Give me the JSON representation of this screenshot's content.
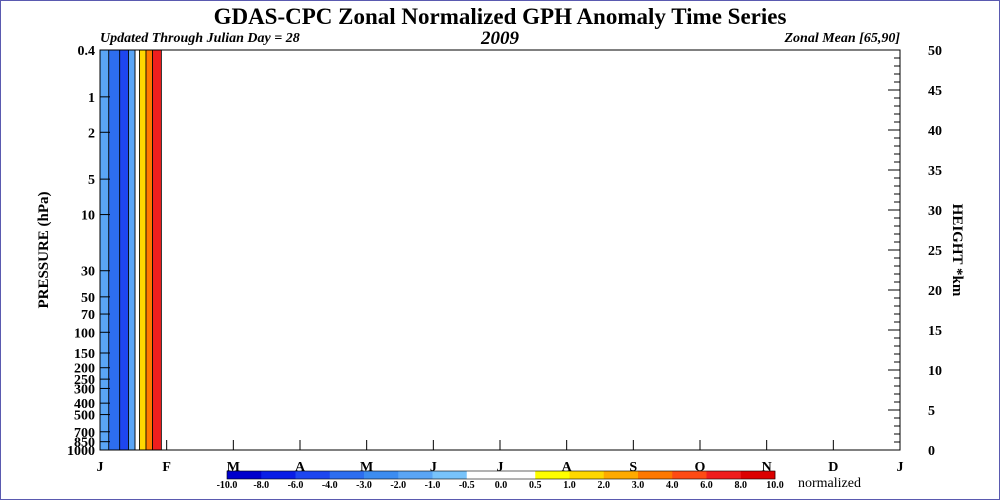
{
  "title": "GDAS-CPC Zonal Normalized GPH Anomaly Time Series",
  "subtitle_left": "Updated Through Julian Day =  28",
  "year": "2009",
  "subtitle_right": "Zonal Mean [65,90]",
  "chart_data": {
    "type": "heatmap",
    "ylabel_left": "PRESSURE (hPa)",
    "ylabel_right": "HEIGHT *km",
    "colorbar_label": "normalized",
    "x_tick_labels": [
      "J",
      "F",
      "M",
      "A",
      "M",
      "J",
      "J",
      "A",
      "S",
      "O",
      "N",
      "D",
      "J"
    ],
    "pressure_ticks": [
      {
        "p": 0.4,
        "label": "0.4"
      },
      {
        "p": 1,
        "label": "1"
      },
      {
        "p": 2,
        "label": "2"
      },
      {
        "p": 5,
        "label": "5"
      },
      {
        "p": 10,
        "label": "10"
      },
      {
        "p": 30,
        "label": "30"
      },
      {
        "p": 50,
        "label": "50"
      },
      {
        "p": 70,
        "label": "70"
      },
      {
        "p": 100,
        "label": "100"
      },
      {
        "p": 150,
        "label": "150"
      },
      {
        "p": 200,
        "label": "200"
      },
      {
        "p": 250,
        "label": "250"
      },
      {
        "p": 300,
        "label": "300"
      },
      {
        "p": 400,
        "label": "400"
      },
      {
        "p": 500,
        "label": "500"
      },
      {
        "p": 700,
        "label": "700"
      },
      {
        "p": 850,
        "label": "850"
      },
      {
        "p": 1000,
        "label": "1000"
      }
    ],
    "pressure_range": [
      1000,
      0.4
    ],
    "height_ticks": [
      0,
      5,
      10,
      15,
      20,
      25,
      30,
      35,
      40,
      45,
      50
    ],
    "height_range_km": [
      0,
      50
    ],
    "colorbar_levels": [
      "-10.0",
      "-8.0",
      "-6.0",
      "-4.0",
      "-3.0",
      "-2.0",
      "-1.0",
      "-0.5",
      "0.0",
      "0.5",
      "1.0",
      "2.0",
      "3.0",
      "4.0",
      "6.0",
      "8.0",
      "10.0"
    ],
    "colorbar_colors": [
      "#0000cc",
      "#0a1ee6",
      "#1e46f0",
      "#2d6ef0",
      "#3c8cf0",
      "#5aa5f5",
      "#78c3fa",
      "#ffffff",
      "#ffffff",
      "#ffff00",
      "#ffd700",
      "#ffaa00",
      "#ff7800",
      "#ff4b14",
      "#f01e1e",
      "#dc0000"
    ],
    "data_through_julian_day": 28,
    "days_in_year": 365,
    "anomaly_bands": [
      {
        "from_day": 0,
        "to_day": 4,
        "color": "#5aa5f5",
        "range": "-2.0 to -1.0"
      },
      {
        "from_day": 4,
        "to_day": 9,
        "color": "#2d6ef0",
        "range": "-4.0 to -2.0"
      },
      {
        "from_day": 9,
        "to_day": 13,
        "color": "#1e46f0",
        "range": "-6.0 to -4.0"
      },
      {
        "from_day": 13,
        "to_day": 16,
        "color": "#5aa5f5",
        "range": "-2.0 to -1.0"
      },
      {
        "from_day": 16,
        "to_day": 18,
        "color": "#ffffff",
        "range": "-0.5 to 0.5"
      },
      {
        "from_day": 18,
        "to_day": 21,
        "color": "#ffd700",
        "range": "1.0 to 2.0"
      },
      {
        "from_day": 21,
        "to_day": 24,
        "color": "#ff7800",
        "range": "3.0 to 4.0"
      },
      {
        "from_day": 24,
        "to_day": 28,
        "color": "#f01e1e",
        "range": "6.0 to 8.0"
      }
    ]
  }
}
